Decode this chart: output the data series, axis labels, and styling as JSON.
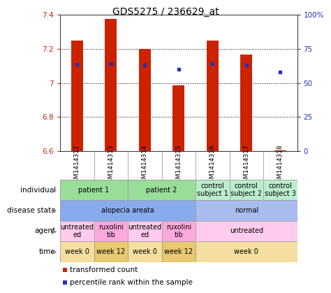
{
  "title": "GDS5275 / 236629_at",
  "samples": [
    "GSM1414312",
    "GSM1414313",
    "GSM1414314",
    "GSM1414315",
    "GSM1414316",
    "GSM1414317",
    "GSM1414318"
  ],
  "red_values": [
    7.25,
    7.375,
    7.2,
    6.985,
    7.25,
    7.165,
    6.605
  ],
  "blue_values": [
    7.11,
    7.115,
    7.105,
    7.08,
    7.115,
    7.105,
    7.065
  ],
  "ylim_left": [
    6.6,
    7.4
  ],
  "ylim_right": [
    0,
    100
  ],
  "yticks_left": [
    6.6,
    6.8,
    7.0,
    7.2,
    7.4
  ],
  "yticks_right": [
    0,
    25,
    50,
    75,
    100
  ],
  "ytick_labels_right": [
    "0",
    "25",
    "50",
    "75",
    "100%"
  ],
  "ytick_labels_left": [
    "6.6",
    "6.8",
    "7",
    "7.2",
    "7.4"
  ],
  "bar_color": "#cc2200",
  "dot_color": "#2233bb",
  "bar_width": 0.35,
  "bar_base": 6.6,
  "bg_color": "#ffffff",
  "sample_bg_color": "#cccccc",
  "annotation_rows": [
    {
      "label": "individual",
      "cells": [
        {
          "text": "patient 1",
          "span": 2,
          "color": "#99dd99"
        },
        {
          "text": "patient 2",
          "span": 2,
          "color": "#99dd99"
        },
        {
          "text": "control\nsubject 1",
          "span": 1,
          "color": "#bbeecc"
        },
        {
          "text": "control\nsubject 2",
          "span": 1,
          "color": "#bbeecc"
        },
        {
          "text": "control\nsubject 3",
          "span": 1,
          "color": "#bbeecc"
        }
      ]
    },
    {
      "label": "disease state",
      "cells": [
        {
          "text": "alopecia areata",
          "span": 4,
          "color": "#88aaee"
        },
        {
          "text": "normal",
          "span": 3,
          "color": "#aabbee"
        }
      ]
    },
    {
      "label": "agent",
      "cells": [
        {
          "text": "untreated\ned",
          "span": 1,
          "color": "#ffccee"
        },
        {
          "text": "ruxolini\ntib",
          "span": 1,
          "color": "#ffaadd"
        },
        {
          "text": "untreated\ned",
          "span": 1,
          "color": "#ffccee"
        },
        {
          "text": "ruxolini\ntib",
          "span": 1,
          "color": "#ffaadd"
        },
        {
          "text": "untreated",
          "span": 3,
          "color": "#ffccee"
        }
      ]
    },
    {
      "label": "time",
      "cells": [
        {
          "text": "week 0",
          "span": 1,
          "color": "#f5dfa0"
        },
        {
          "text": "week 12",
          "span": 1,
          "color": "#e8c870"
        },
        {
          "text": "week 0",
          "span": 1,
          "color": "#f5dfa0"
        },
        {
          "text": "week 12",
          "span": 1,
          "color": "#e8c870"
        },
        {
          "text": "week 0",
          "span": 3,
          "color": "#f5dfa0"
        }
      ]
    }
  ],
  "legend": [
    {
      "color": "#cc2200",
      "label": "transformed count"
    },
    {
      "color": "#2233bb",
      "label": "percentile rank within the sample"
    }
  ],
  "left_axis_color": "#cc2200",
  "right_axis_color": "#2233bb",
  "title_fontsize": 10,
  "tick_fontsize": 7.5,
  "annot_fontsize": 7.5,
  "legend_fontsize": 7.5,
  "sample_fontsize": 6.5
}
